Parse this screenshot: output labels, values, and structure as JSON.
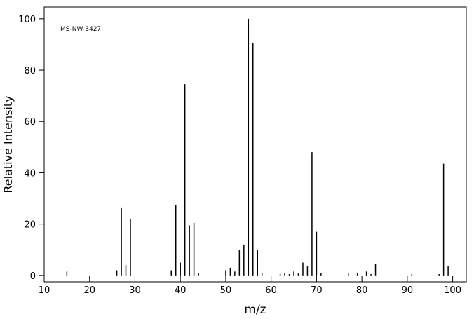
{
  "chart_data": {
    "type": "bar",
    "annotation": "MS-NW-3427",
    "x_label": "m/z",
    "y_label": "Relative Intensity",
    "x": [
      15,
      26,
      27,
      28,
      29,
      38,
      39,
      40,
      41,
      42,
      43,
      44,
      50,
      51,
      52,
      53,
      54,
      55,
      56,
      57,
      58,
      62,
      63,
      64,
      65,
      66,
      67,
      68,
      69,
      70,
      71,
      77,
      79,
      81,
      82,
      83,
      91,
      97,
      98,
      99
    ],
    "values": [
      1.5,
      2,
      26.5,
      4,
      22,
      2,
      27.5,
      5,
      74.5,
      19.5,
      20.5,
      1,
      2,
      3,
      1.5,
      10,
      12,
      100,
      90.5,
      10,
      1,
      0.5,
      1,
      0.5,
      1.5,
      1,
      5,
      3.5,
      48,
      17,
      1,
      1,
      1,
      1.5,
      0.5,
      4.5,
      0.5,
      0.5,
      43.5,
      3.5
    ],
    "color": "#000000",
    "xlim": [
      10,
      103
    ],
    "xticks": [
      10,
      20,
      30,
      40,
      50,
      60,
      70,
      80,
      90,
      100
    ],
    "ylim": [
      -2.5,
      104.6
    ],
    "yticks": [
      0,
      20,
      40,
      60,
      80,
      100
    ]
  }
}
